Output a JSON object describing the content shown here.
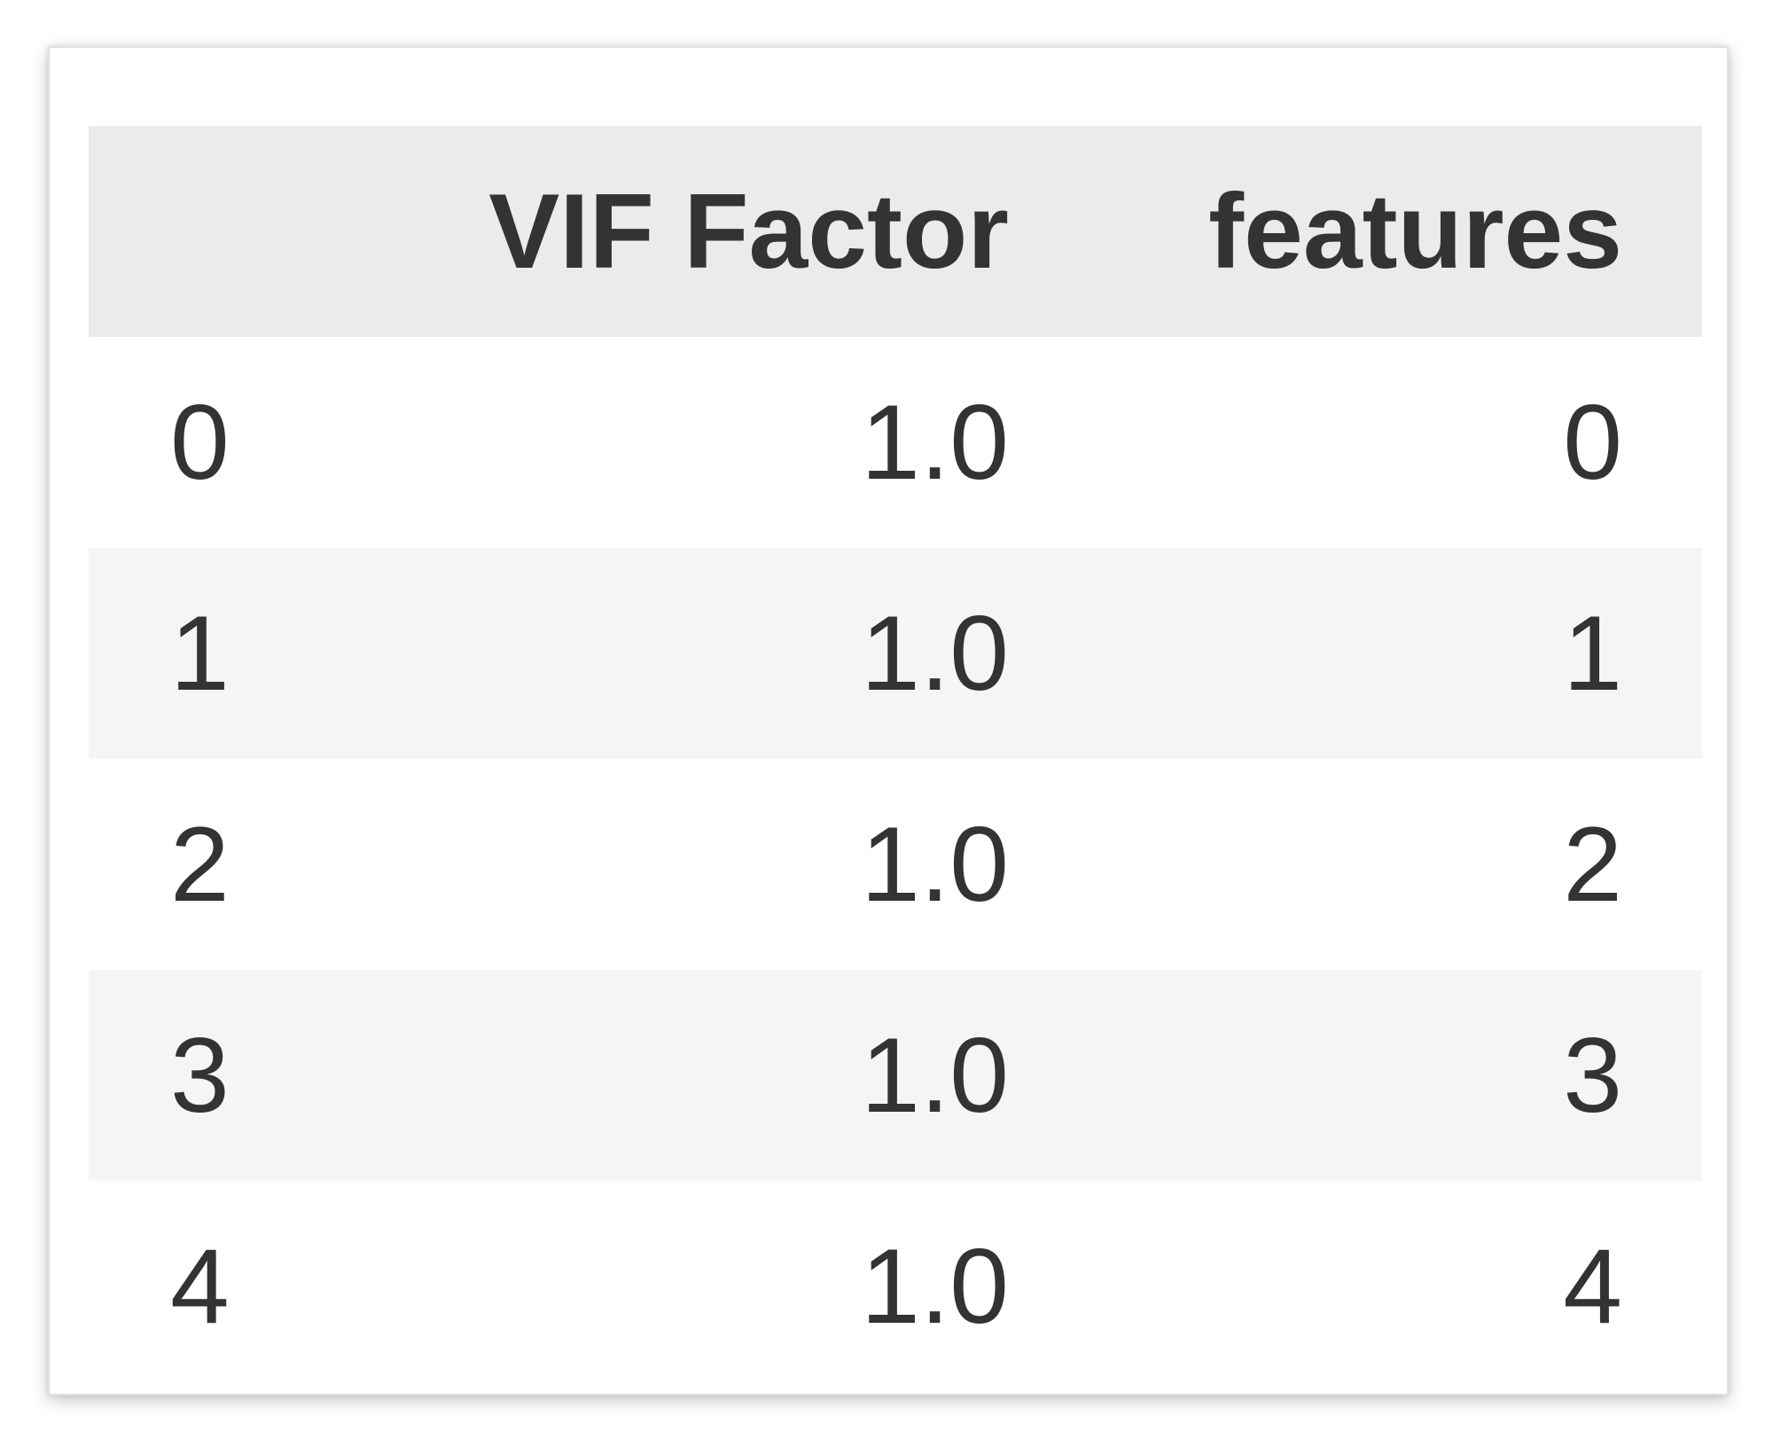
{
  "table": {
    "columns": [
      "",
      "VIF Factor",
      "features"
    ],
    "rows": [
      {
        "index": "0",
        "vif": "1.0",
        "features": "0"
      },
      {
        "index": "1",
        "vif": "1.0",
        "features": "1"
      },
      {
        "index": "2",
        "vif": "1.0",
        "features": "2"
      },
      {
        "index": "3",
        "vif": "1.0",
        "features": "3"
      },
      {
        "index": "4",
        "vif": "1.0",
        "features": "4"
      }
    ]
  },
  "colors": {
    "header_background": "#ebebeb",
    "striped_row_background": "#f5f5f5",
    "text": "#333333"
  }
}
